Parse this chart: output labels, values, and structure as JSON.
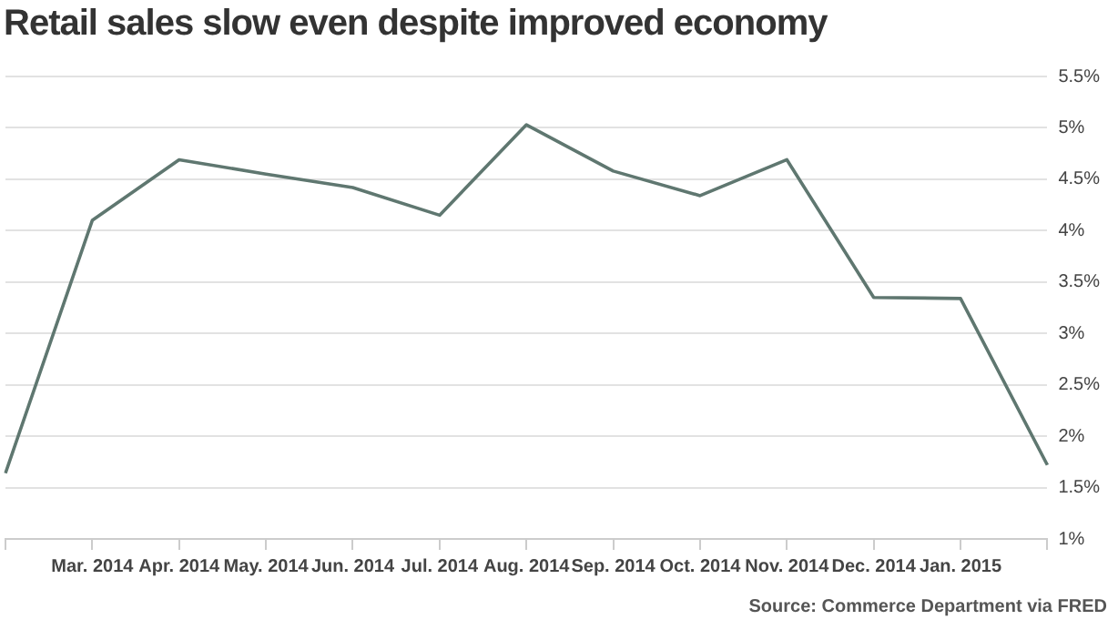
{
  "chart_data": {
    "type": "line",
    "title": "Retail sales slow even despite improved economy",
    "categories": [
      null,
      "Mar. 2014",
      "Apr. 2014",
      "May. 2014",
      "Jun. 2014",
      "Jul. 2014",
      "Aug. 2014",
      "Sep. 2014",
      "Oct. 2014",
      "Nov. 2014",
      "Dec. 2014",
      "Jan. 2015",
      null
    ],
    "series": [
      {
        "color": "#5f7770",
        "values": [
          1.64,
          4.1,
          4.69,
          4.55,
          4.42,
          4.15,
          5.03,
          4.58,
          4.34,
          4.69,
          3.35,
          3.34,
          1.72
        ]
      }
    ],
    "ylim": [
      1,
      5.5
    ],
    "yticks": [
      {
        "value": 1,
        "label": "1%"
      },
      {
        "value": 1.5,
        "label": "1.5%"
      },
      {
        "value": 2,
        "label": "2%"
      },
      {
        "value": 2.5,
        "label": "2.5%"
      },
      {
        "value": 3,
        "label": "3%"
      },
      {
        "value": 3.5,
        "label": "3.5%"
      },
      {
        "value": 4,
        "label": "4%"
      },
      {
        "value": 4.5,
        "label": "4.5%"
      },
      {
        "value": 5,
        "label": "5%"
      },
      {
        "value": 5.5,
        "label": "5.5%"
      }
    ],
    "grid": "y",
    "marker": "none",
    "line_style": "solid",
    "annotations": [
      "Source: Commerce Department via FRED"
    ]
  }
}
